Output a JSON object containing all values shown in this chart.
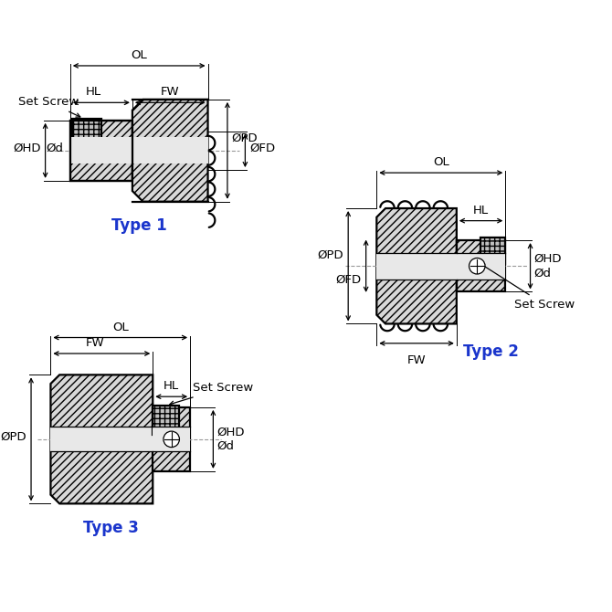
{
  "bg_color": "#ffffff",
  "line_color": "#000000",
  "type_color": "#1a35cc",
  "hatch_fill": "#d8d8d8",
  "bore_fill": "#e8e8e8",
  "ss_fill": "#c0c0c0",
  "type1_label": "Type 1",
  "type2_label": "Type 2",
  "type3_label": "Type 3"
}
